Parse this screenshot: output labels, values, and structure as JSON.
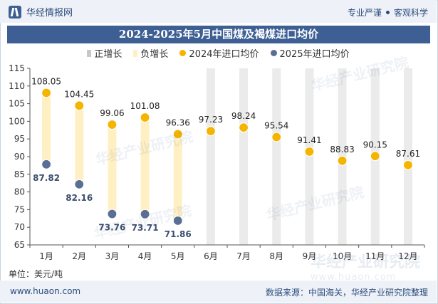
{
  "header": {
    "brand_name": "华经情报网",
    "tag_left": "专业严谨",
    "tag_right": "客观科学"
  },
  "title": "2024-2025年5月中国煤及褐煤进口均价",
  "legend": [
    {
      "label": "正增长",
      "color": "#c8c8c8",
      "shape": "rect"
    },
    {
      "label": "负增长",
      "color": "#fff0c4",
      "shape": "rect"
    },
    {
      "label": "2024年进口均价",
      "color": "#f4b400",
      "shape": "dot"
    },
    {
      "label": "2025年进口均价",
      "color": "#5b6f95",
      "shape": "dot"
    }
  ],
  "unit_label": "单位：美元/吨",
  "footer": {
    "website": "www.huaon.com",
    "source": "数据来源：中国海关，华经产业研究院整理"
  },
  "watermark": {
    "text": "华经产业研究院",
    "url": "www.huaon.com"
  },
  "chart_data": {
    "type": "line",
    "categories": [
      "1月",
      "2月",
      "3月",
      "4月",
      "5月",
      "6月",
      "7月",
      "8月",
      "9月",
      "10月",
      "11月",
      "12月"
    ],
    "series": [
      {
        "name": "2024年进口均价",
        "color": "#f4b400",
        "values": [
          108.05,
          104.45,
          99.06,
          101.08,
          96.36,
          97.23,
          98.24,
          95.54,
          91.41,
          88.83,
          90.15,
          87.61
        ]
      },
      {
        "name": "2025年进口均价",
        "color": "#5b6f95",
        "values": [
          87.82,
          82.16,
          73.76,
          73.71,
          71.86,
          null,
          null,
          null,
          null,
          null,
          null,
          null
        ]
      }
    ],
    "range_bars": [
      {
        "name": "负增长",
        "color": "#fff0c4",
        "category_indices": [
          0,
          1,
          2,
          3,
          4
        ]
      },
      {
        "name": "背景",
        "color": "#ebebeb",
        "category_indices": [
          5,
          6,
          7,
          8,
          9,
          10,
          11
        ]
      }
    ],
    "ylim": [
      65,
      115
    ],
    "yticks": [
      65,
      70,
      75,
      80,
      85,
      90,
      95,
      100,
      105,
      110,
      115
    ],
    "grid": false,
    "legend_position": "top"
  }
}
